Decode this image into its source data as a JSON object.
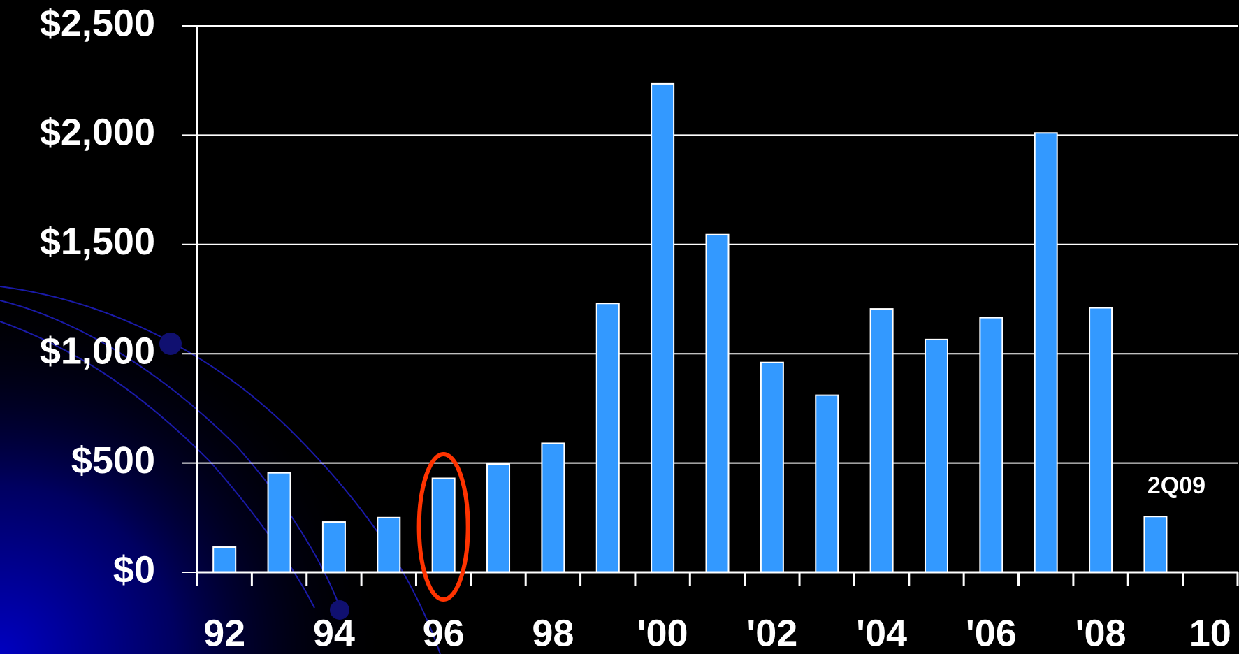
{
  "chart_data": {
    "type": "bar",
    "categories": [
      "92",
      null,
      "94",
      null,
      "96",
      null,
      "98",
      null,
      "'00",
      null,
      "'02",
      null,
      "'04",
      null,
      "'06",
      null,
      "'08",
      null,
      "10"
    ],
    "values": [
      115,
      455,
      230,
      250,
      430,
      495,
      590,
      1230,
      2235,
      1545,
      960,
      810,
      1205,
      1065,
      1165,
      2010,
      1210,
      255,
      null
    ],
    "color": "#3399ff",
    "ylim": [
      0,
      2500
    ],
    "yticks": [
      {
        "value": 0,
        "label": "$0"
      },
      {
        "value": 500,
        "label": "$500"
      },
      {
        "value": 1000,
        "label": "$1,000"
      },
      {
        "value": 1500,
        "label": "$1,500"
      },
      {
        "value": 2000,
        "label": "$2,000"
      },
      {
        "value": 2500,
        "label": "$2,500"
      }
    ],
    "grid": true,
    "annotations": [
      {
        "text": "2Q09",
        "category_index": 17
      }
    ]
  }
}
